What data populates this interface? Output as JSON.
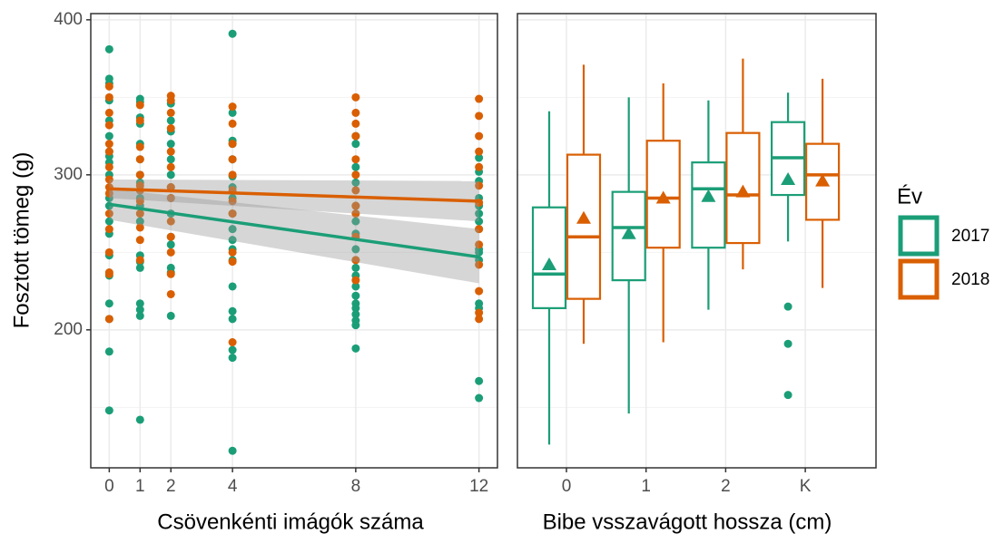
{
  "chart_data": [
    {
      "type": "scatter",
      "x_label": "Csövenkénti imágók száma",
      "y_label": "Fosztott tömeg (g)",
      "xlim": [
        -0.6,
        12.6
      ],
      "xticks": [
        0,
        1,
        2,
        4,
        8,
        12
      ],
      "ylim": [
        111,
        404
      ],
      "yticks": [
        200,
        300,
        400
      ],
      "minor_yticks": [
        150,
        250,
        350
      ],
      "grid": true,
      "series": [
        {
          "color": "#1b9e77",
          "groups": [
            {
              "x": 0,
              "values": [
                381,
                362,
                359,
                348,
                335,
                325,
                315,
                312,
                308,
                300,
                285,
                280,
                270,
                262,
                248,
                235,
                217,
                207,
                186,
                148
              ]
            },
            {
              "x": 1,
              "values": [
                349,
                347,
                337,
                333,
                320,
                310,
                300,
                295,
                290,
                285,
                280,
                270,
                248,
                244,
                240,
                217,
                213,
                209,
                142
              ]
            },
            {
              "x": 2,
              "values": [
                346,
                335,
                328,
                320,
                310,
                300,
                292,
                285,
                275,
                260,
                255,
                240,
                237,
                209
              ]
            },
            {
              "x": 4,
              "values": [
                391,
                340,
                322,
                320,
                310,
                299,
                292,
                285,
                275,
                265,
                258,
                252,
                245,
                228,
                212,
                207,
                187,
                182,
                122
              ]
            },
            {
              "x": 8,
              "values": [
                325,
                320,
                305,
                295,
                280,
                270,
                262,
                252,
                245,
                240,
                235,
                228,
                222,
                217,
                214,
                210,
                206,
                203,
                188
              ]
            },
            {
              "x": 12,
              "values": [
                311,
                302,
                296,
                285,
                280,
                275,
                270,
                265,
                252,
                250,
                245,
                217,
                214,
                167,
                156
              ]
            }
          ]
        },
        {
          "color": "#d95f02",
          "groups": [
            {
              "x": 0,
              "values": [
                357,
                350,
                340,
                332,
                320,
                315,
                305,
                297,
                292,
                288,
                275,
                265,
                250,
                237,
                236,
                207
              ]
            },
            {
              "x": 1,
              "values": [
                345,
                335,
                318,
                310,
                300,
                293,
                290,
                283,
                275,
                266,
                258,
                245
              ]
            },
            {
              "x": 2,
              "values": [
                351,
                348,
                340,
                330,
                315,
                305,
                292,
                285,
                270,
                260,
                250,
                236,
                223
              ]
            },
            {
              "x": 4,
              "values": [
                344,
                333,
                320,
                310,
                300,
                290,
                283,
                275,
                250,
                244,
                192
              ]
            },
            {
              "x": 8,
              "values": [
                350,
                340,
                333,
                325,
                310,
                300,
                290,
                280,
                275,
                260,
                245,
                232
              ]
            },
            {
              "x": 12,
              "values": [
                349,
                338,
                325,
                315,
                305,
                293,
                282,
                265,
                255,
                242,
                225,
                211,
                207
              ]
            }
          ]
        }
      ],
      "fits": [
        {
          "color": "#1b9e77",
          "x": [
            0,
            12
          ],
          "values": [
            281,
            247
          ],
          "lower": [
            271,
            230
          ],
          "upper": [
            291,
            265
          ]
        },
        {
          "color": "#d95f02",
          "x": [
            0,
            12
          ],
          "values": [
            291,
            283
          ],
          "lower": [
            285,
            270
          ],
          "upper": [
            297,
            296
          ]
        }
      ]
    },
    {
      "type": "box",
      "x_label": "Bibe vsszavágott hossza (cm)",
      "legend_title": "Év",
      "categories": [
        "0",
        "1",
        "2",
        "K"
      ],
      "ylim": [
        111,
        404
      ],
      "yticks": [
        200,
        300,
        400
      ],
      "minor_yticks": [
        150,
        250,
        350
      ],
      "grid": true,
      "series": [
        {
          "name": "2017",
          "color": "#1b9e77",
          "low": [
            126,
            146,
            213,
            257
          ],
          "q1": [
            214,
            232,
            253,
            287
          ],
          "median": [
            236,
            266,
            291,
            311
          ],
          "q3": [
            279,
            289,
            308,
            334
          ],
          "high": [
            341,
            350,
            348,
            353
          ],
          "mean": [
            242,
            262,
            286,
            297
          ],
          "outliers": [
            [],
            [],
            [],
            [
              215,
              191,
              158
            ]
          ]
        },
        {
          "name": "2018",
          "color": "#d95f02",
          "low": [
            191,
            192,
            239,
            227
          ],
          "q1": [
            220,
            253,
            256,
            271
          ],
          "median": [
            260,
            285,
            287,
            300
          ],
          "q3": [
            313,
            322,
            327,
            320
          ],
          "high": [
            371,
            359,
            375,
            362
          ],
          "mean": [
            272,
            285,
            289,
            296
          ],
          "outliers": [
            [],
            [],
            [],
            []
          ]
        }
      ]
    }
  ]
}
